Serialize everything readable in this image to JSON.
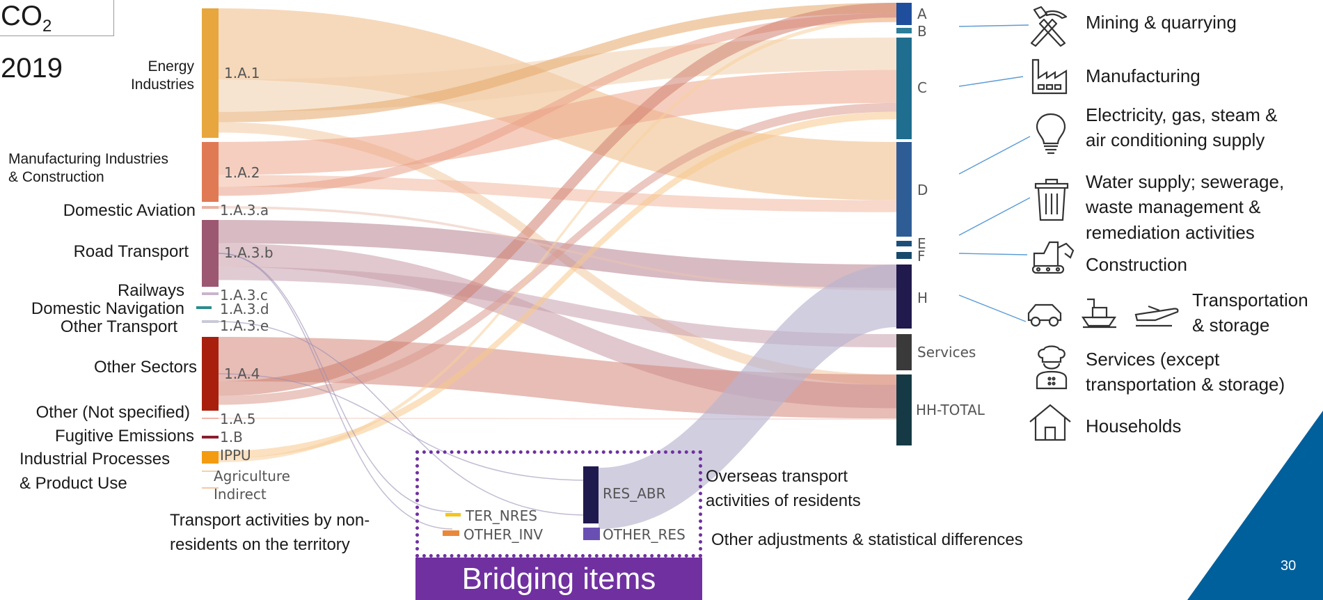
{
  "title": {
    "main": "CO",
    "sub": "2",
    "year": "2019"
  },
  "source_nodes": [
    {
      "code": "1.A.1",
      "label": "Energy\nIndustries",
      "color": "#e8a63e"
    },
    {
      "code": "1.A.2",
      "label": "Manufacturing Industries\n& Construction",
      "color": "#e07a55"
    },
    {
      "code": "1.A.3.a",
      "label": "Domestic Aviation",
      "color": "#e9b3a3"
    },
    {
      "code": "1.A.3.b",
      "label": "Road Transport",
      "color": "#9c5870"
    },
    {
      "code": "1.A.3.c",
      "label": "Railways",
      "color": "#c8b4cc"
    },
    {
      "code": "1.A.3.d",
      "label": "Domestic Navigation",
      "color": "#2e8b8b"
    },
    {
      "code": "1.A.3.e",
      "label": "Other Transport",
      "color": "#c9c9d9"
    },
    {
      "code": "1.A.4",
      "label": "Other Sectors",
      "color": "#a8200d"
    },
    {
      "code": "1.A.5",
      "label": "Other (Not specified)",
      "color": "#f0b6aa"
    },
    {
      "code": "1.B",
      "label": "Fugitive Emissions",
      "color": "#8b1d2d"
    },
    {
      "code": "IPPU",
      "label": "Industrial Processes\n& Product Use",
      "color": "#f39c12"
    },
    {
      "code": "Agriculture",
      "label": "",
      "color": "#f4d2a6"
    },
    {
      "code": "Indirect",
      "label": "",
      "color": "#f4c7a6"
    }
  ],
  "target_nodes": [
    {
      "code": "A",
      "color": "#1f4e9c"
    },
    {
      "code": "B",
      "color": "#2b7d9a"
    },
    {
      "code": "C",
      "color": "#1f6e8f"
    },
    {
      "code": "D",
      "color": "#2e5d96"
    },
    {
      "code": "E",
      "color": "#1b4f7a"
    },
    {
      "code": "F",
      "color": "#184a6b"
    },
    {
      "code": "H",
      "color": "#211a4c"
    },
    {
      "code": "Services",
      "color": "#3a3a3a"
    },
    {
      "code": "HH-TOTAL",
      "color": "#153a45"
    }
  ],
  "sectors": [
    {
      "label": "Mining & quarrying",
      "icon": "pickaxe-icon"
    },
    {
      "label": "Manufacturing",
      "icon": "factory-icon"
    },
    {
      "label": "Electricity, gas, steam &\nair conditioning supply",
      "icon": "lightbulb-icon"
    },
    {
      "label": "Water supply; sewerage,\nwaste management &\nremediation activities",
      "icon": "trash-bin-icon"
    },
    {
      "label": "Construction",
      "icon": "excavator-icon"
    },
    {
      "label": "Transportation\n& storage",
      "icon": "car-ship-plane-icon"
    },
    {
      "label": "Services (except\ntransportation & storage)",
      "icon": "chef-icon"
    },
    {
      "label": "Households",
      "icon": "house-icon"
    }
  ],
  "bridging": {
    "banner": "Bridging items",
    "nodes": [
      {
        "code": "TER_NRES",
        "color": "#f5c518"
      },
      {
        "code": "OTHER_INV",
        "color": "#e8893a"
      },
      {
        "code": "RES_ABR",
        "color": "#1f1a4d"
      },
      {
        "code": "OTHER_RES",
        "color": "#6a4fb3"
      }
    ],
    "notes": {
      "nonresidents": "Transport activities by non-\nresidents on the territory",
      "overseas": "Overseas transport\nactivities of residents",
      "other_adj": "Other adjustments & statistical differences"
    }
  },
  "page_number": "30",
  "accent_color": "#00609c"
}
